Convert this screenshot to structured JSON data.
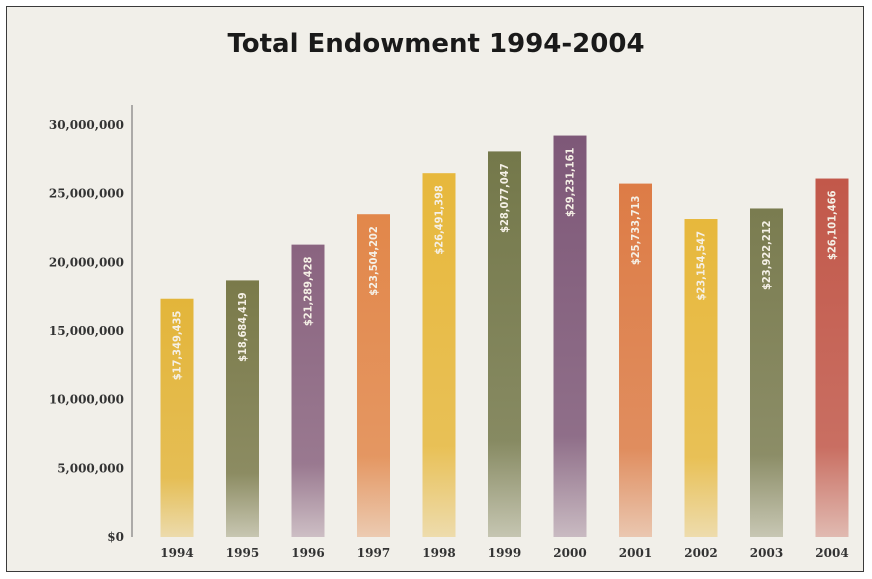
{
  "chart_data": {
    "type": "bar",
    "title": "Total Endowment 1994-2004",
    "xlabel": "",
    "ylabel": "",
    "ylim": [
      0,
      30000000
    ],
    "yticks": [
      0,
      5000000,
      10000000,
      15000000,
      20000000,
      25000000,
      30000000
    ],
    "ytick_labels": [
      "$0",
      "5,000,000",
      "10,000,000",
      "15,000,000",
      "20,000,000",
      "25,000,000",
      "30,000,000"
    ],
    "categories": [
      "1994",
      "1995",
      "1996",
      "1997",
      "1998",
      "1999",
      "2000",
      "2001",
      "2002",
      "2003",
      "2004"
    ],
    "values": [
      17349435,
      18684419,
      21289428,
      23504202,
      26491398,
      28077047,
      29231161,
      25733713,
      23154547,
      23922212,
      26101466
    ],
    "data_labels": [
      "$17,349,435",
      "$18,684,419",
      "$21,289,428",
      "$23,504,202",
      "$26,491,398",
      "$28,077,047",
      "$29,231,161",
      "$25,733,713",
      "$23,154,547",
      "$23,922,212",
      "$26,101,466"
    ],
    "colors": [
      "#e3b53a",
      "#7a7a4a",
      "#8a6480",
      "#e2874a",
      "#e7b83c",
      "#74784a",
      "#7e5878",
      "#dd7c46",
      "#e7b83c",
      "#7a7c50",
      "#c2584a"
    ],
    "grid": false,
    "legend": "none"
  }
}
